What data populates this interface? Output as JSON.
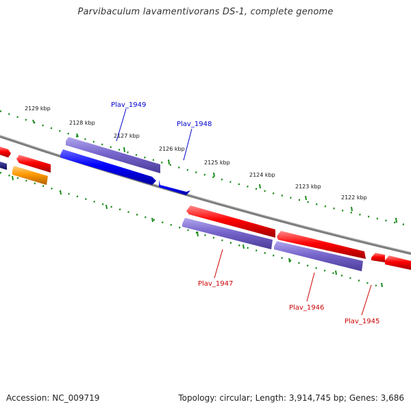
{
  "title": "Parvibaculum lavamentivorans DS-1, complete genome",
  "footer": {
    "accession": "Accession: NC_009719",
    "summary": "Topology: circular; Length: 3,914,745 bp; Genes: 3,686"
  },
  "colors": {
    "forward_gene": "#ff0000",
    "reverse_gene": "#0000ff",
    "reverse_gene_light": "#7766cc",
    "forward_gene_light": "#8877dd",
    "other_gene": "#ff9900",
    "dark_gene": "#1a1a7a",
    "backbone": "#808080",
    "ticks": "#1a8a1a",
    "label_forward": "#0000cc",
    "label_reverse": "#cc0000"
  },
  "scale_labels": [
    "2129 kbp",
    "2128 kbp",
    "2127 kbp",
    "2126 kbp",
    "2125 kbp",
    "2124 kbp",
    "2123 kbp",
    "2122 kbp"
  ],
  "gene_labels": [
    {
      "name": "Plav_1949",
      "strand": "upper"
    },
    {
      "name": "Plav_1948",
      "strand": "upper"
    },
    {
      "name": "Plav_1947",
      "strand": "lower"
    },
    {
      "name": "Plav_1946",
      "strand": "lower"
    },
    {
      "name": "Plav_1945",
      "strand": "lower"
    }
  ]
}
